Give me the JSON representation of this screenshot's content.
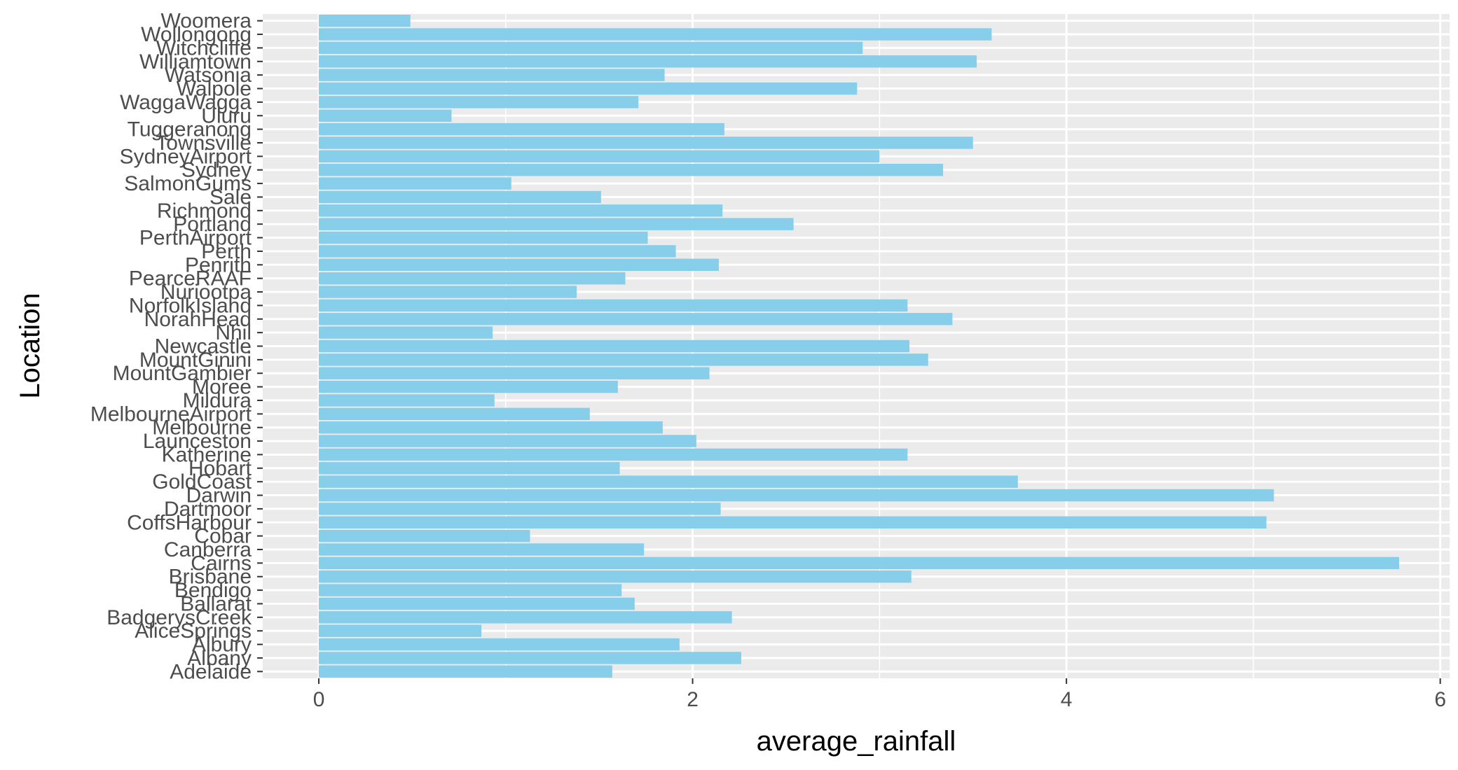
{
  "chart_data": {
    "type": "bar",
    "orientation": "horizontal",
    "title": "",
    "xlabel": "average_rainfall",
    "ylabel": "Location",
    "xlim": [
      -0.3,
      6.05
    ],
    "xticks": [
      0,
      2,
      4,
      6
    ],
    "grid": true,
    "bar_color": "#87CEEB",
    "panel_background": "#EBEBEB",
    "categories": [
      "Adelaide",
      "Albany",
      "Albury",
      "AliceSprings",
      "BadgerysCreek",
      "Ballarat",
      "Bendigo",
      "Brisbane",
      "Cairns",
      "Canberra",
      "Cobar",
      "CoffsHarbour",
      "Dartmoor",
      "Darwin",
      "GoldCoast",
      "Hobart",
      "Katherine",
      "Launceston",
      "Melbourne",
      "MelbourneAirport",
      "Mildura",
      "Moree",
      "MountGambier",
      "MountGinini",
      "Newcastle",
      "Nhil",
      "NorahHead",
      "NorfolkIsland",
      "Nuriootpa",
      "PearceRAAF",
      "Penrith",
      "Perth",
      "PerthAirport",
      "Portland",
      "Richmond",
      "Sale",
      "SalmonGums",
      "Sydney",
      "SydneyAirport",
      "Townsville",
      "Tuggeranong",
      "Uluru",
      "WaggaWagga",
      "Walpole",
      "Watsonia",
      "Williamtown",
      "Witchcliffe",
      "Wollongong",
      "Woomera"
    ],
    "values": [
      1.57,
      2.26,
      1.93,
      0.87,
      2.21,
      1.69,
      1.62,
      3.17,
      5.78,
      1.74,
      1.13,
      5.07,
      2.15,
      5.11,
      3.74,
      1.61,
      3.15,
      2.02,
      1.84,
      1.45,
      0.94,
      1.6,
      2.09,
      3.26,
      3.16,
      0.93,
      3.39,
      3.15,
      1.38,
      1.64,
      2.14,
      1.91,
      1.76,
      2.54,
      2.16,
      1.51,
      1.03,
      3.34,
      3.0,
      3.5,
      2.17,
      0.71,
      1.71,
      2.88,
      1.85,
      3.52,
      2.91,
      3.6,
      0.49
    ]
  }
}
